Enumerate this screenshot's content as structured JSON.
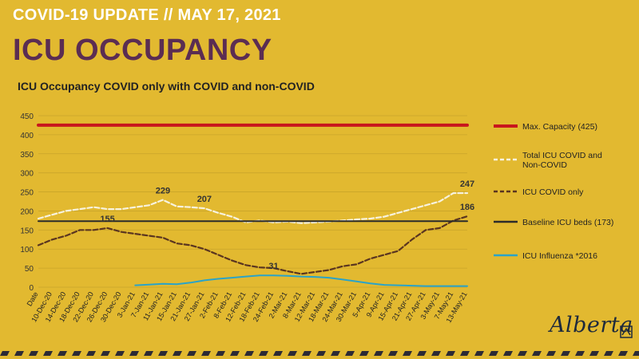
{
  "header": {
    "date_line": "COVID-19 UPDATE // MAY 17, 2021",
    "title": "ICU OCCUPANCY",
    "logo_text": "Alberta"
  },
  "colors": {
    "background": "#e2b930",
    "max_capacity": "#c8161d",
    "total_icu": "#f7f2de",
    "icu_covid": "#5a3520",
    "baseline": "#2b2b2b",
    "influenza": "#2aa3c8",
    "title_purple": "#5b2d52"
  },
  "chart_data": {
    "type": "line",
    "title": "ICU Occupancy COVID only with COVID and non-COVID",
    "xlabel": "",
    "ylabel": "",
    "ylim": [
      0,
      450
    ],
    "yticks": [
      0,
      50,
      100,
      150,
      200,
      250,
      300,
      350,
      400,
      450
    ],
    "grid": true,
    "legend_position": "right",
    "x_tick_labels": [
      "Date",
      "10-Dec-20",
      "14-Dec-20",
      "18-Dec-20",
      "22-Dec-20",
      "26-Dec-20",
      "30-Dec-20",
      "3-Jan-21",
      "7-Jan-21",
      "11-Jan-21",
      "15-Jan-21",
      "21-Jan-21",
      "27-Jan-21",
      "2-Feb-21",
      "8-Feb-21",
      "12-Feb-21",
      "18-Feb-21",
      "24-Feb-21",
      "2-Mar-21",
      "8-Mar-21",
      "12-Mar-21",
      "18-Mar-21",
      "24-Mar-21",
      "30-Mar-21",
      "5-Apr-21",
      "9-Apr-21",
      "15-Apr-21",
      "21-Apr-21",
      "27-Apr-21",
      "3-May-21",
      "7-May-21",
      "13-May-21"
    ],
    "series": [
      {
        "name": "Max. Capacity (425)",
        "style": "solid-thick",
        "values": [
          425,
          425,
          425,
          425,
          425,
          425,
          425,
          425,
          425,
          425,
          425,
          425,
          425,
          425,
          425,
          425,
          425,
          425,
          425,
          425,
          425,
          425,
          425,
          425,
          425,
          425,
          425,
          425,
          425,
          425,
          425,
          425
        ]
      },
      {
        "name": "Total ICU COVID and Non-COVID",
        "style": "dashed-light",
        "values": [
          180,
          190,
          200,
          205,
          210,
          205,
          205,
          210,
          215,
          229,
          212,
          210,
          207,
          195,
          185,
          170,
          175,
          170,
          172,
          168,
          170,
          172,
          175,
          178,
          180,
          185,
          195,
          205,
          215,
          225,
          247,
          247
        ]
      },
      {
        "name": "ICU COVID only",
        "style": "dashed-dark",
        "values": [
          110,
          125,
          135,
          150,
          150,
          155,
          145,
          140,
          135,
          130,
          115,
          110,
          100,
          85,
          70,
          58,
          52,
          50,
          42,
          35,
          40,
          45,
          55,
          60,
          75,
          85,
          95,
          125,
          150,
          155,
          175,
          186
        ]
      },
      {
        "name": "Baseline ICU beds (173)",
        "style": "solid",
        "values": [
          173,
          173,
          173,
          173,
          173,
          173,
          173,
          173,
          173,
          173,
          173,
          173,
          173,
          173,
          173,
          173,
          173,
          173,
          173,
          173,
          173,
          173,
          173,
          173,
          173,
          173,
          173,
          173,
          173,
          173,
          173,
          173
        ]
      },
      {
        "name": "ICU Influenza *2016",
        "style": "solid-teal",
        "values": [
          null,
          null,
          null,
          null,
          null,
          null,
          null,
          5,
          7,
          9,
          8,
          12,
          18,
          22,
          25,
          28,
          31,
          31,
          30,
          28,
          27,
          25,
          20,
          15,
          10,
          6,
          5,
          4,
          3,
          3,
          3,
          3
        ]
      }
    ],
    "annotations": [
      {
        "text": "229",
        "x_index": 9,
        "y": 229
      },
      {
        "text": "207",
        "x_index": 12,
        "y": 207
      },
      {
        "text": "155",
        "x_index": 5,
        "y": 155
      },
      {
        "text": "31",
        "x_index": 17,
        "y": 31
      },
      {
        "text": "247",
        "x_index": 31,
        "y": 247
      },
      {
        "text": "186",
        "x_index": 31,
        "y": 186
      }
    ]
  }
}
